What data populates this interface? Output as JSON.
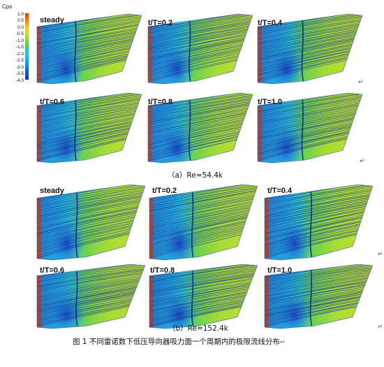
{
  "colorbar": {
    "title": "Cps",
    "ticks": [
      "1.0",
      "0.5",
      "0.0",
      "-0.5",
      "-1.0",
      "-1.5",
      "-2.0",
      "-2.5",
      "-3.0",
      "-3.5",
      "-4.0"
    ]
  },
  "section_a": {
    "caption": "（a）Re=54.4k",
    "panels": [
      "steady",
      "t/T=0.2",
      "t/T=0.4",
      "t/T=0.6",
      "t/T=0.8",
      "t/T=1.0"
    ]
  },
  "section_b": {
    "caption": "（b）Re=152.4k",
    "panels": [
      "steady",
      "t/T=0.2",
      "t/T=0.4",
      "t/T=0.6",
      "t/T=0.8",
      "t/T=1.0"
    ]
  },
  "figure_caption": "图 1 不同雷诺数下低压导向器吸力面一个周期内的极限流线分布",
  "return_mark": "↵"
}
